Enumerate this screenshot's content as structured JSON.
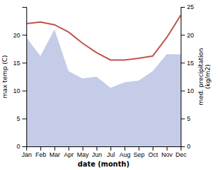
{
  "chart_data": {
    "type": "area",
    "xlabel": "date (month)",
    "ylabel": "max temp (C)",
    "y2label": "med. precipitation\n(kg/m2)",
    "categories": [
      "Jan",
      "Feb",
      "Mar",
      "Apr",
      "May",
      "Jun",
      "Jul",
      "Aug",
      "Sep",
      "Oct",
      "Nov",
      "Dec"
    ],
    "series": [
      {
        "type": "area",
        "color": "#c5cce8",
        "values": [
          19.5,
          16.2,
          21.0,
          13.5,
          12.2,
          12.5,
          10.5,
          11.5,
          11.8,
          13.5,
          16.5,
          16.5
        ]
      },
      {
        "type": "line",
        "axis": "y2",
        "color": "#c0504d",
        "values": [
          22.0,
          22.3,
          21.8,
          20.5,
          18.5,
          16.8,
          15.5,
          15.5,
          15.8,
          16.2,
          19.5,
          23.5
        ]
      }
    ],
    "ylim": [
      0,
      25
    ],
    "yticks": [
      0,
      5,
      10,
      15,
      20
    ],
    "y2lim": [
      0,
      25
    ],
    "y2ticks": [
      0,
      5,
      10,
      15,
      20,
      25
    ],
    "grid": false
  }
}
